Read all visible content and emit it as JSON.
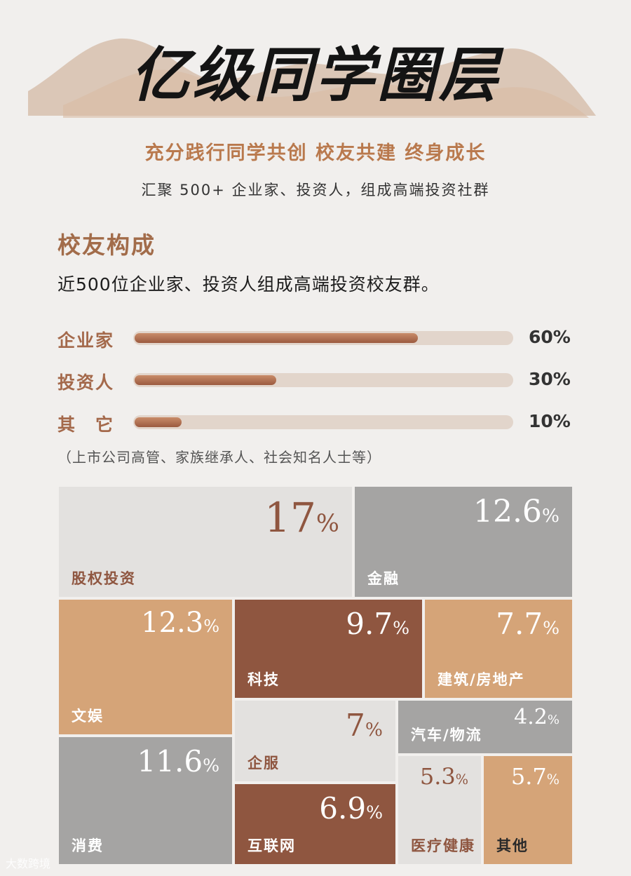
{
  "header": {
    "title": "亿级同学圈层",
    "slogan": "充分践行同学共创 校友共建 终身成长",
    "subtitle": "汇聚 500+ 企业家、投资人，组成高端投资社群"
  },
  "composition": {
    "title": "校友构成",
    "description": "近500位企业家、投资人组成高端投资校友群。",
    "note": "（上市公司高管、家族继承人、社会知名人士等）"
  },
  "watermark": "大数跨境",
  "colors": {
    "accent": "#a4694b",
    "slogan": "#b9794d",
    "light_tile": "#e3e1df",
    "grey_tile": "#a5a4a3",
    "tan_tile": "#d5a478",
    "brown_tile": "#8f5640"
  },
  "chart_data": [
    {
      "type": "bar",
      "categories": [
        "企业家",
        "投资人",
        "其　它"
      ],
      "values": [
        60,
        30,
        10
      ],
      "value_labels": [
        "60%",
        "30%",
        "10%"
      ],
      "unit": "%",
      "xlim": [
        0,
        80
      ]
    },
    {
      "type": "treemap",
      "categories": [
        "股权投资",
        "金融",
        "文娱",
        "科技",
        "建筑/房地产",
        "企服",
        "汽车/物流",
        "消费",
        "互联网",
        "医疗健康",
        "其他"
      ],
      "values": [
        17,
        12.6,
        12.3,
        9.7,
        7.7,
        7,
        4.2,
        11.6,
        6.9,
        5.3,
        5.7
      ],
      "value_labels": [
        "17",
        "12.6",
        "12.3",
        "9.7",
        "7.7",
        "7",
        "4.2",
        "11.6",
        "6.9",
        "5.3",
        "5.7"
      ],
      "unit": "%"
    }
  ]
}
